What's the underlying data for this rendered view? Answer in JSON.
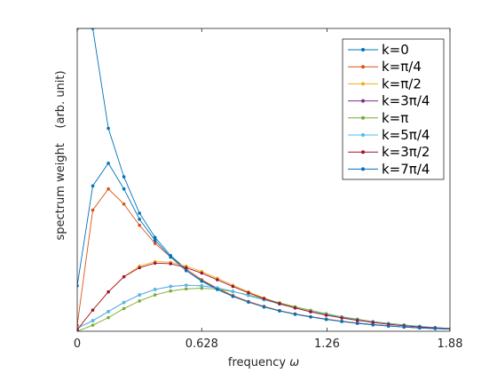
{
  "chart_data": {
    "type": "line",
    "title": "",
    "xlabel": "frequency ω",
    "ylabel": "spectrum weight    (arb. unit)",
    "xlim": [
      0,
      1.88
    ],
    "ylim": [
      0,
      1
    ],
    "xticks": [
      0,
      0.628,
      1.26,
      1.88
    ],
    "xtick_labels": [
      "0",
      "0.628",
      "1.26",
      "1.88"
    ],
    "yticks_shown": false,
    "grid": false,
    "legend": "top-right",
    "x": [
      0,
      0.0785,
      0.157,
      0.2355,
      0.314,
      0.3925,
      0.471,
      0.5495,
      0.628,
      0.7065,
      0.785,
      0.8635,
      0.942,
      1.0205,
      1.099,
      1.1775,
      1.256,
      1.3345,
      1.413,
      1.4915,
      1.57,
      1.6485,
      1.727,
      1.8055,
      1.884
    ],
    "series": [
      {
        "name": "k=0",
        "color": "#0072BD",
        "values": [
          1.0,
          1.0,
          0.67,
          0.51,
          0.39,
          0.31,
          0.25,
          0.205,
          0.168,
          0.14,
          0.117,
          0.098,
          0.082,
          0.068,
          0.057,
          0.048,
          0.04,
          0.033,
          0.027,
          0.022,
          0.018,
          0.014,
          0.011,
          0.009,
          0.007
        ]
      },
      {
        "name": "k=π/4",
        "color": "#D95319",
        "values": [
          0.02,
          0.4,
          0.47,
          0.42,
          0.35,
          0.29,
          0.245,
          0.205,
          0.17,
          0.142,
          0.118,
          0.098,
          0.082,
          0.068,
          0.057,
          0.048,
          0.04,
          0.033,
          0.027,
          0.022,
          0.018,
          0.014,
          0.011,
          0.009,
          0.007
        ]
      },
      {
        "name": "k=π/2",
        "color": "#EDB120",
        "values": [
          0.005,
          0.07,
          0.13,
          0.18,
          0.215,
          0.23,
          0.228,
          0.215,
          0.197,
          0.175,
          0.152,
          0.13,
          0.11,
          0.093,
          0.078,
          0.065,
          0.054,
          0.045,
          0.037,
          0.03,
          0.024,
          0.019,
          0.015,
          0.011,
          0.008
        ]
      },
      {
        "name": "k=3π/4",
        "color": "#7E2F8E",
        "values": [
          0.01,
          0.035,
          0.065,
          0.095,
          0.12,
          0.138,
          0.148,
          0.152,
          0.15,
          0.143,
          0.132,
          0.118,
          0.104,
          0.09,
          0.077,
          0.065,
          0.055,
          0.046,
          0.038,
          0.031,
          0.025,
          0.02,
          0.016,
          0.012,
          0.009
        ]
      },
      {
        "name": "k=π",
        "color": "#77AC30",
        "values": [
          0.0,
          0.02,
          0.045,
          0.075,
          0.1,
          0.12,
          0.133,
          0.14,
          0.142,
          0.139,
          0.131,
          0.12,
          0.107,
          0.094,
          0.081,
          0.069,
          0.058,
          0.048,
          0.04,
          0.032,
          0.026,
          0.021,
          0.016,
          0.012,
          0.009
        ]
      },
      {
        "name": "k=5π/4",
        "color": "#4DBEEE",
        "values": [
          0.01,
          0.035,
          0.065,
          0.095,
          0.12,
          0.138,
          0.148,
          0.152,
          0.15,
          0.143,
          0.132,
          0.118,
          0.104,
          0.09,
          0.077,
          0.065,
          0.055,
          0.046,
          0.038,
          0.031,
          0.025,
          0.02,
          0.016,
          0.012,
          0.009
        ]
      },
      {
        "name": "k=3π/2",
        "color": "#A2142F",
        "values": [
          0.005,
          0.07,
          0.13,
          0.18,
          0.21,
          0.225,
          0.223,
          0.21,
          0.192,
          0.17,
          0.148,
          0.127,
          0.108,
          0.091,
          0.077,
          0.064,
          0.053,
          0.044,
          0.036,
          0.029,
          0.023,
          0.018,
          0.014,
          0.011,
          0.008
        ]
      },
      {
        "name": "k=7π/4",
        "color": "#0072BD",
        "values": [
          0.15,
          0.48,
          0.555,
          0.47,
          0.37,
          0.3,
          0.245,
          0.2,
          0.165,
          0.138,
          0.115,
          0.096,
          0.08,
          0.067,
          0.056,
          0.047,
          0.039,
          0.032,
          0.026,
          0.021,
          0.017,
          0.014,
          0.011,
          0.009,
          0.007
        ]
      }
    ]
  }
}
